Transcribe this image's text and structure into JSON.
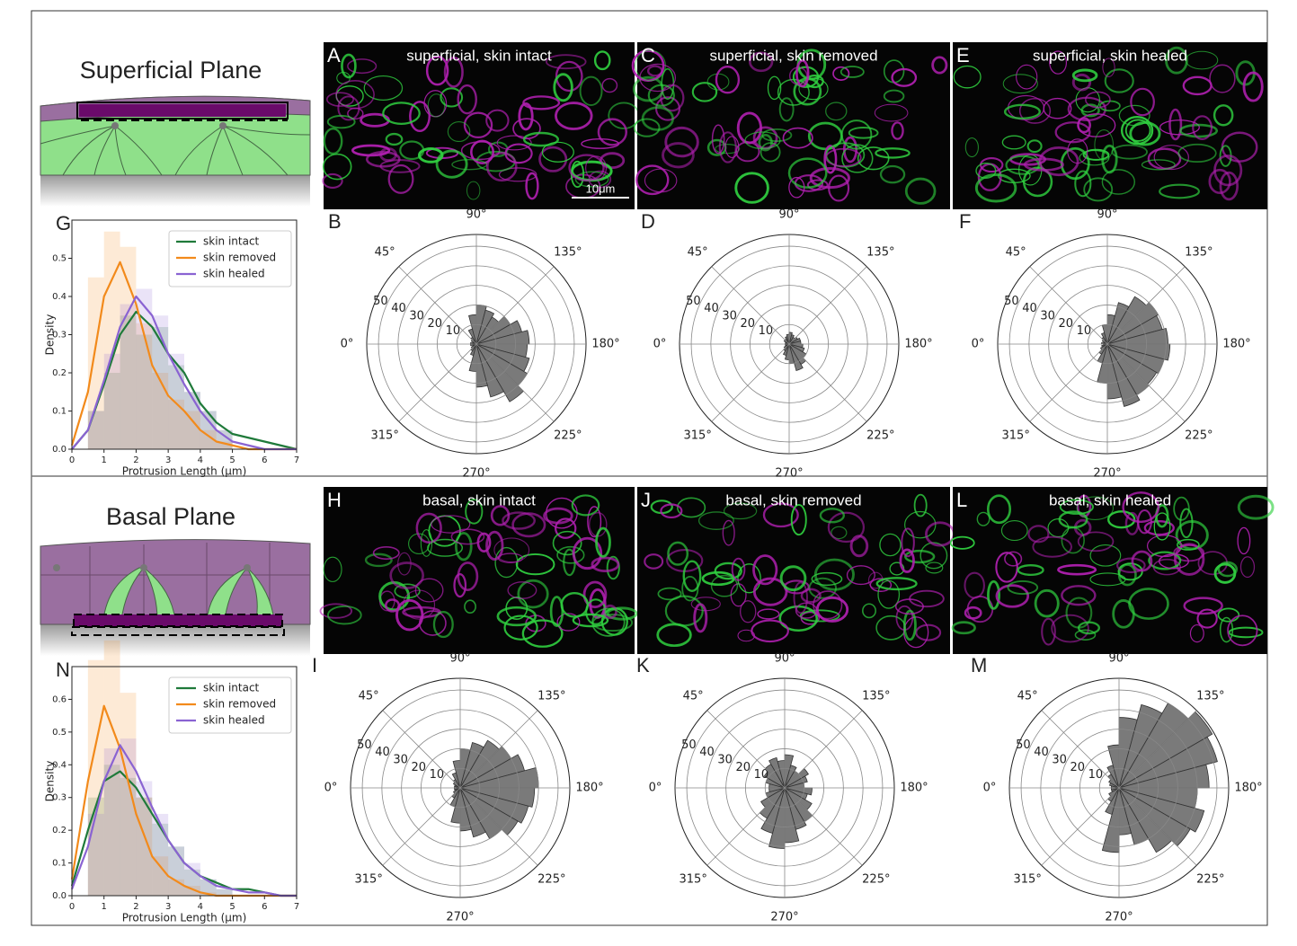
{
  "figure": {
    "schematics": [
      {
        "title": "Superficial Plane"
      },
      {
        "title": "Basal Plane"
      }
    ],
    "images": [
      {
        "label": "A",
        "caption": "superficial, skin intact"
      },
      {
        "label": "C",
        "caption": "superficial, skin removed"
      },
      {
        "label": "E",
        "caption": "superficial, skin healed"
      },
      {
        "label": "H",
        "caption": "basal, skin intact"
      },
      {
        "label": "J",
        "caption": "basal, skin removed"
      },
      {
        "label": "L",
        "caption": "basal, skin healed"
      }
    ],
    "scale_bar": "10μm"
  },
  "chart_data": [
    {
      "type": "density",
      "panel_label": "G",
      "xlabel": "Protrusion Length (μm)",
      "ylabel": "Density",
      "xlim": [
        0,
        7
      ],
      "ylim": [
        0,
        0.6
      ],
      "xticks": [
        0,
        1,
        2,
        3,
        4,
        5,
        6,
        7
      ],
      "yticks": [
        {
          "value": 0,
          "label": "0.0"
        },
        0.1,
        0.2,
        0.3,
        0.4,
        0.5
      ],
      "legend": "upper right",
      "x": [
        0,
        0.5,
        1,
        1.5,
        2,
        2.5,
        3,
        3.5,
        4,
        4.5,
        5,
        5.5,
        6,
        6.5,
        7
      ],
      "bins": [
        0.5,
        1,
        1.5,
        2,
        2.5,
        3,
        3.5,
        4,
        4.5,
        5
      ],
      "series": [
        {
          "name": "skin intact",
          "color": "#1f7a3a",
          "values": [
            0,
            0.05,
            0.17,
            0.3,
            0.36,
            0.32,
            0.25,
            0.2,
            0.12,
            0.07,
            0.04,
            0.03,
            0.02,
            0.01,
            0
          ],
          "hist": [
            0.1,
            0.2,
            0.35,
            0.3,
            0.32,
            0.22,
            0.15,
            0.1,
            0.05
          ]
        },
        {
          "name": "skin removed",
          "color": "#f28a1b",
          "values": [
            0.01,
            0.15,
            0.4,
            0.49,
            0.38,
            0.22,
            0.14,
            0.1,
            0.05,
            0.02,
            0.01,
            0,
            0,
            0,
            0
          ],
          "hist": [
            0.45,
            0.57,
            0.53,
            0.33,
            0.2,
            0.13,
            0.1,
            0.05,
            0.02
          ]
        },
        {
          "name": "skin healed",
          "color": "#8a63d2",
          "values": [
            0,
            0.05,
            0.18,
            0.32,
            0.4,
            0.35,
            0.25,
            0.17,
            0.1,
            0.05,
            0.02,
            0.01,
            0,
            0,
            0
          ],
          "hist": [
            0.1,
            0.25,
            0.38,
            0.42,
            0.35,
            0.25,
            0.15,
            0.1,
            0.05
          ]
        }
      ]
    },
    {
      "type": "polar_histogram",
      "panel_label": "B",
      "color": "#7a7a7a",
      "rlim": [
        0,
        56
      ],
      "rticks": [
        10,
        20,
        30,
        40,
        50
      ],
      "thetaticks": [
        {
          "value": 0,
          "label": "0°"
        },
        {
          "value": 45,
          "label": "45°"
        },
        {
          "value": 90,
          "label": "90°"
        },
        {
          "value": 135,
          "label": "135°"
        },
        {
          "value": 180,
          "label": "180°"
        },
        {
          "value": 225,
          "label": "225°"
        },
        {
          "value": 270,
          "label": "270°"
        },
        {
          "value": 315,
          "label": "315°"
        }
      ],
      "bins": [
        0,
        15,
        30,
        45,
        60,
        75,
        90,
        105,
        120,
        135,
        150,
        165,
        180,
        195,
        210,
        225,
        240,
        255,
        270,
        285,
        300,
        315,
        330,
        345,
        360
      ],
      "values": [
        3,
        2,
        3,
        4,
        8,
        15,
        20,
        18,
        16,
        20,
        24,
        27,
        26,
        28,
        30,
        34,
        28,
        22,
        14,
        6,
        4,
        3,
        2,
        3
      ]
    },
    {
      "type": "polar_histogram",
      "panel_label": "D",
      "color": "#7a7a7a",
      "rlim": [
        0,
        56
      ],
      "rticks": [
        10,
        20,
        30,
        40,
        50
      ],
      "thetaticks": [
        {
          "value": 0,
          "label": "0°"
        },
        {
          "value": 45,
          "label": "45°"
        },
        {
          "value": 90,
          "label": "90°"
        },
        {
          "value": 135,
          "label": "135°"
        },
        {
          "value": 180,
          "label": "180°"
        },
        {
          "value": 225,
          "label": "225°"
        },
        {
          "value": 270,
          "label": "270°"
        },
        {
          "value": 315,
          "label": "315°"
        }
      ],
      "bins": [
        0,
        15,
        30,
        45,
        60,
        75,
        90,
        105,
        120,
        135,
        150,
        165,
        180,
        195,
        210,
        225,
        240,
        255,
        270,
        285,
        300,
        315,
        330,
        345,
        360
      ],
      "values": [
        2,
        2,
        3,
        3,
        4,
        5,
        6,
        5,
        4,
        5,
        6,
        6,
        7,
        8,
        10,
        12,
        14,
        10,
        8,
        6,
        4,
        3,
        2,
        2
      ]
    },
    {
      "type": "polar_histogram",
      "panel_label": "F",
      "color": "#7a7a7a",
      "rlim": [
        0,
        56
      ],
      "rticks": [
        10,
        20,
        30,
        40,
        50
      ],
      "thetaticks": [
        {
          "value": 0,
          "label": "0°"
        },
        {
          "value": 45,
          "label": "45°"
        },
        {
          "value": 90,
          "label": "90°"
        },
        {
          "value": 135,
          "label": "135°"
        },
        {
          "value": 180,
          "label": "180°"
        },
        {
          "value": 225,
          "label": "225°"
        },
        {
          "value": 270,
          "label": "270°"
        },
        {
          "value": 315,
          "label": "315°"
        }
      ],
      "bins": [
        0,
        15,
        30,
        45,
        60,
        75,
        90,
        105,
        120,
        135,
        150,
        165,
        180,
        195,
        210,
        225,
        240,
        255,
        270,
        285,
        300,
        315,
        330,
        345,
        360
      ],
      "values": [
        3,
        2,
        3,
        4,
        6,
        10,
        15,
        22,
        28,
        30,
        29,
        31,
        32,
        30,
        29,
        30,
        33,
        28,
        20,
        10,
        6,
        4,
        3,
        2
      ]
    },
    {
      "type": "density",
      "panel_label": "N",
      "xlabel": "Protrusion Length (μm)",
      "ylabel": "Density",
      "xlim": [
        0,
        7
      ],
      "ylim": [
        0,
        0.7
      ],
      "xticks": [
        0,
        1,
        2,
        3,
        4,
        5,
        6,
        7
      ],
      "yticks": [
        {
          "value": 0,
          "label": "0.0"
        },
        0.1,
        0.2,
        0.3,
        0.4,
        0.5,
        0.6
      ],
      "legend": "upper right",
      "x": [
        0,
        0.5,
        1,
        1.5,
        2,
        2.5,
        3,
        3.5,
        4,
        4.5,
        5,
        5.5,
        6,
        6.5,
        7
      ],
      "bins": [
        0.5,
        1,
        1.5,
        2,
        2.5,
        3,
        3.5,
        4,
        4.5,
        5
      ],
      "series": [
        {
          "name": "skin intact",
          "color": "#1f7a3a",
          "values": [
            0.03,
            0.2,
            0.35,
            0.38,
            0.33,
            0.25,
            0.17,
            0.1,
            0.06,
            0.04,
            0.02,
            0.02,
            0.01,
            0,
            0
          ],
          "hist": [
            0.3,
            0.4,
            0.36,
            0.3,
            0.22,
            0.15,
            0.08,
            0.05,
            0.02
          ]
        },
        {
          "name": "skin removed",
          "color": "#f28a1b",
          "values": [
            0.05,
            0.35,
            0.58,
            0.45,
            0.25,
            0.12,
            0.06,
            0.03,
            0.01,
            0,
            0,
            0,
            0,
            0,
            0
          ],
          "hist": [
            0.72,
            0.78,
            0.62,
            0.3,
            0.12,
            0.05,
            0.03,
            0.01,
            0
          ]
        },
        {
          "name": "skin healed",
          "color": "#8a63d2",
          "values": [
            0.02,
            0.15,
            0.35,
            0.46,
            0.38,
            0.27,
            0.17,
            0.1,
            0.06,
            0.03,
            0.02,
            0.01,
            0.01,
            0,
            0
          ],
          "hist": [
            0.25,
            0.45,
            0.48,
            0.35,
            0.25,
            0.15,
            0.1,
            0.05,
            0.02
          ]
        }
      ]
    },
    {
      "type": "polar_histogram",
      "panel_label": "I",
      "color": "#7a7a7a",
      "rlim": [
        0,
        56
      ],
      "rticks": [
        10,
        20,
        30,
        40,
        50
      ],
      "thetaticks": [
        {
          "value": 0,
          "label": "0°"
        },
        {
          "value": 45,
          "label": "45°"
        },
        {
          "value": 90,
          "label": "90°"
        },
        {
          "value": 135,
          "label": "135°"
        },
        {
          "value": 180,
          "label": "180°"
        },
        {
          "value": 225,
          "label": "225°"
        },
        {
          "value": 270,
          "label": "270°"
        },
        {
          "value": 315,
          "label": "315°"
        }
      ],
      "bins": [
        0,
        15,
        30,
        45,
        60,
        75,
        90,
        105,
        120,
        135,
        150,
        165,
        180,
        195,
        210,
        225,
        240,
        255,
        270,
        285,
        300,
        315,
        330,
        345,
        360
      ],
      "values": [
        3,
        3,
        4,
        5,
        8,
        14,
        20,
        24,
        28,
        30,
        34,
        40,
        38,
        36,
        34,
        30,
        26,
        22,
        18,
        10,
        6,
        4,
        3,
        3
      ]
    },
    {
      "type": "polar_histogram",
      "panel_label": "K",
      "color": "#7a7a7a",
      "rlim": [
        0,
        56
      ],
      "rticks": [
        10,
        20,
        30,
        40,
        50
      ],
      "thetaticks": [
        {
          "value": 0,
          "label": "0°"
        },
        {
          "value": 45,
          "label": "45°"
        },
        {
          "value": 90,
          "label": "90°"
        },
        {
          "value": 135,
          "label": "135°"
        },
        {
          "value": 180,
          "label": "180°"
        },
        {
          "value": 225,
          "label": "225°"
        },
        {
          "value": 270,
          "label": "270°"
        },
        {
          "value": 315,
          "label": "315°"
        }
      ],
      "bins": [
        0,
        15,
        30,
        45,
        60,
        75,
        90,
        105,
        120,
        135,
        150,
        165,
        180,
        195,
        210,
        225,
        240,
        255,
        270,
        285,
        300,
        315,
        330,
        345,
        360
      ],
      "values": [
        8,
        10,
        12,
        14,
        16,
        14,
        17,
        12,
        10,
        14,
        12,
        10,
        14,
        12,
        16,
        20,
        22,
        28,
        31,
        24,
        18,
        14,
        10,
        8
      ]
    },
    {
      "type": "polar_histogram",
      "panel_label": "M",
      "color": "#7a7a7a",
      "rlim": [
        0,
        56
      ],
      "rticks": [
        10,
        20,
        30,
        40,
        50
      ],
      "thetaticks": [
        {
          "value": 0,
          "label": "0°"
        },
        {
          "value": 45,
          "label": "45°"
        },
        {
          "value": 90,
          "label": "90°"
        },
        {
          "value": 135,
          "label": "135°"
        },
        {
          "value": 180,
          "label": "180°"
        },
        {
          "value": 225,
          "label": "225°"
        },
        {
          "value": 270,
          "label": "270°"
        },
        {
          "value": 315,
          "label": "315°"
        }
      ],
      "bins": [
        0,
        15,
        30,
        45,
        60,
        75,
        90,
        105,
        120,
        135,
        150,
        165,
        180,
        195,
        210,
        225,
        240,
        255,
        270,
        285,
        300,
        315,
        330,
        345,
        360
      ],
      "values": [
        4,
        5,
        6,
        8,
        12,
        22,
        36,
        44,
        50,
        55,
        52,
        46,
        40,
        45,
        42,
        38,
        30,
        24,
        33,
        14,
        8,
        6,
        4,
        4
      ]
    }
  ]
}
